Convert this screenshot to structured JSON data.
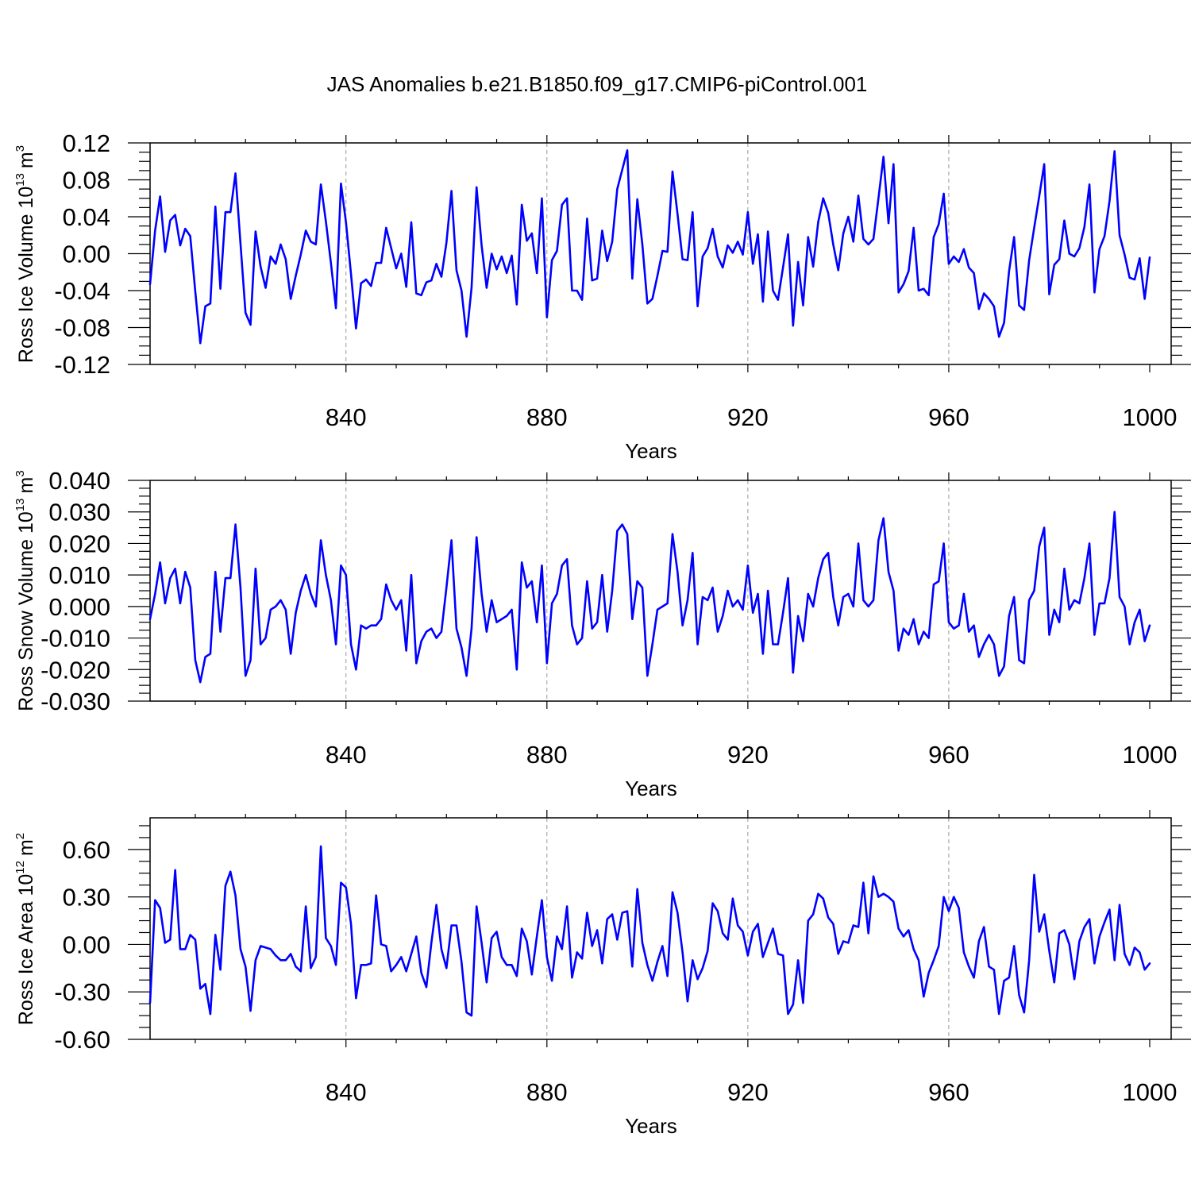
{
  "chart_data": [
    {
      "type": "line",
      "title": "JAS Anomalies b.e21.B1850.f09_g17.CMIP6-piControl.001",
      "xlabel": "Years",
      "ylabel": {
        "text": "Ross Ice Volume 10",
        "exponent": "13",
        "unit": "m",
        "unit_exponent": "3"
      },
      "xlim": [
        801,
        1000
      ],
      "xticks": [
        "840",
        "880",
        "920",
        "960",
        "1000"
      ],
      "ylim": [
        -0.12,
        0.12
      ],
      "yticks": [
        "-0.12",
        "-0.08",
        "-0.04",
        "0.00",
        "0.04",
        "0.08",
        "0.12"
      ],
      "grid": "vertical dashed at major x ticks",
      "series": [
        {
          "name": "Ross Ice Volume",
          "color": "#0000ff",
          "x_start": 801,
          "x_step": 1,
          "values": [
            -0.033,
            0.025,
            0.062,
            0.002,
            0.036,
            0.042,
            0.009,
            0.027,
            0.019,
            -0.041,
            -0.097,
            -0.057,
            -0.054,
            0.051,
            -0.038,
            0.045,
            0.045,
            0.087,
            0.011,
            -0.064,
            -0.077,
            0.024,
            -0.014,
            -0.037,
            -0.003,
            -0.011,
            0.01,
            -0.006,
            -0.049,
            -0.024,
            -0.001,
            0.025,
            0.013,
            0.01,
            0.075,
            0.035,
            -0.01,
            -0.059,
            0.076,
            0.034,
            -0.022,
            -0.081,
            -0.032,
            -0.028,
            -0.035,
            -0.01,
            -0.01,
            0.028,
            0.006,
            -0.016,
            0.0,
            -0.036,
            0.034,
            -0.043,
            -0.045,
            -0.031,
            -0.029,
            -0.011,
            -0.025,
            0.012,
            0.068,
            -0.018,
            -0.04,
            -0.09,
            -0.037,
            0.072,
            0.009,
            -0.037,
            0.0,
            -0.017,
            -0.003,
            -0.021,
            -0.002,
            -0.055,
            0.053,
            0.014,
            0.022,
            -0.021,
            0.06,
            -0.069,
            -0.007,
            0.003,
            0.053,
            0.06,
            -0.04,
            -0.04,
            -0.05,
            0.038,
            -0.029,
            -0.027,
            0.025,
            -0.008,
            0.013,
            0.07,
            0.091,
            0.112,
            -0.027,
            0.059,
            0.01,
            -0.054,
            -0.049,
            -0.024,
            0.003,
            0.002,
            0.089,
            0.043,
            -0.006,
            -0.007,
            0.045,
            -0.057,
            -0.003,
            0.006,
            0.027,
            -0.003,
            -0.015,
            0.009,
            0.001,
            0.013,
            -0.001,
            0.045,
            -0.011,
            0.021,
            -0.052,
            0.024,
            -0.04,
            -0.05,
            -0.015,
            0.021,
            -0.078,
            -0.009,
            -0.056,
            0.018,
            -0.014,
            0.034,
            0.06,
            0.044,
            0.01,
            -0.018,
            0.022,
            0.04,
            0.013,
            0.063,
            0.016,
            0.01,
            0.016,
            0.06,
            0.105,
            0.033,
            0.097,
            -0.042,
            -0.033,
            -0.019,
            0.028,
            -0.04,
            -0.038,
            -0.045,
            0.018,
            0.032,
            0.065,
            -0.011,
            -0.003,
            -0.009,
            0.005,
            -0.015,
            -0.021,
            -0.06,
            -0.043,
            -0.049,
            -0.057,
            -0.09,
            -0.075,
            -0.019,
            0.018,
            -0.056,
            -0.061,
            -0.007,
            0.028,
            0.062,
            0.097,
            -0.044,
            -0.012,
            -0.006,
            0.036,
            0.0,
            -0.003,
            0.006,
            0.029,
            0.075,
            -0.042,
            0.005,
            0.019,
            0.057,
            0.111,
            0.02,
            -0.001,
            -0.026,
            -0.028,
            -0.005,
            -0.049,
            -0.004
          ]
        }
      ]
    },
    {
      "type": "line",
      "xlabel": "Years",
      "ylabel": {
        "text": "Ross Snow Volume 10",
        "exponent": "13",
        "unit": "m",
        "unit_exponent": "3"
      },
      "xlim": [
        801,
        1000
      ],
      "xticks": [
        "840",
        "880",
        "920",
        "960",
        "1000"
      ],
      "ylim": [
        -0.03,
        0.04
      ],
      "yticks": [
        "-0.030",
        "-0.020",
        "-0.010",
        "0.000",
        "0.010",
        "0.020",
        "0.030",
        "0.040"
      ],
      "grid": "vertical dashed at major x ticks",
      "series": [
        {
          "name": "Ross Snow Volume",
          "color": "#0000ff",
          "x_start": 801,
          "x_step": 1,
          "values": [
            -0.004,
            0.004,
            0.014,
            0.001,
            0.009,
            0.012,
            0.001,
            0.011,
            0.006,
            -0.017,
            -0.024,
            -0.016,
            -0.015,
            0.011,
            -0.008,
            0.009,
            0.009,
            0.026,
            0.006,
            -0.022,
            -0.017,
            0.012,
            -0.012,
            -0.01,
            -0.001,
            0.0,
            0.002,
            -0.001,
            -0.015,
            -0.002,
            0.005,
            0.01,
            0.004,
            0.0,
            0.021,
            0.01,
            0.002,
            -0.012,
            0.013,
            0.01,
            -0.012,
            -0.02,
            -0.006,
            -0.007,
            -0.006,
            -0.006,
            -0.004,
            0.007,
            0.002,
            -0.001,
            0.002,
            -0.014,
            0.01,
            -0.018,
            -0.011,
            -0.008,
            -0.007,
            -0.01,
            -0.008,
            0.006,
            0.021,
            -0.007,
            -0.013,
            -0.022,
            -0.007,
            0.022,
            0.004,
            -0.008,
            0.002,
            -0.005,
            -0.004,
            -0.003,
            -0.001,
            -0.02,
            0.014,
            0.006,
            0.008,
            -0.005,
            0.013,
            -0.018,
            0.001,
            0.004,
            0.013,
            0.015,
            -0.006,
            -0.012,
            -0.01,
            0.008,
            -0.007,
            -0.005,
            0.01,
            -0.008,
            0.005,
            0.024,
            0.026,
            0.023,
            -0.004,
            0.008,
            0.006,
            -0.022,
            -0.012,
            -0.001,
            0.0,
            0.001,
            0.023,
            0.011,
            -0.006,
            0.002,
            0.017,
            -0.012,
            0.003,
            0.002,
            0.006,
            -0.008,
            -0.003,
            0.005,
            0.0,
            0.002,
            -0.001,
            0.013,
            -0.002,
            0.004,
            -0.015,
            0.005,
            -0.012,
            -0.012,
            -0.002,
            0.009,
            -0.021,
            -0.003,
            -0.011,
            0.004,
            0.0,
            0.009,
            0.015,
            0.017,
            0.003,
            -0.006,
            0.003,
            0.004,
            0.0,
            0.02,
            0.002,
            0.0,
            0.002,
            0.021,
            0.028,
            0.011,
            0.005,
            -0.014,
            -0.007,
            -0.009,
            -0.004,
            -0.012,
            -0.008,
            -0.01,
            0.007,
            0.008,
            0.02,
            -0.005,
            -0.007,
            -0.006,
            0.004,
            -0.008,
            -0.006,
            -0.016,
            -0.012,
            -0.009,
            -0.012,
            -0.022,
            -0.019,
            -0.003,
            0.003,
            -0.017,
            -0.018,
            0.002,
            0.005,
            0.019,
            0.025,
            -0.009,
            -0.001,
            -0.005,
            0.012,
            -0.001,
            0.002,
            0.001,
            0.009,
            0.02,
            -0.009,
            0.001,
            0.001,
            0.009,
            0.03,
            0.003,
            0.0,
            -0.012,
            -0.005,
            -0.001,
            -0.011,
            -0.006
          ]
        }
      ]
    },
    {
      "type": "line",
      "xlabel": "Years",
      "ylabel": {
        "text": "Ross Ice Area 10",
        "exponent": "12",
        "unit": "m",
        "unit_exponent": "2"
      },
      "xlim": [
        801,
        1000
      ],
      "xticks": [
        "840",
        "880",
        "920",
        "960",
        "1000"
      ],
      "ylim": [
        -0.6,
        0.8
      ],
      "yticks": [
        "-0.60",
        "-0.30",
        "0.00",
        "0.30",
        "0.60"
      ],
      "grid": "vertical dashed at major x ticks",
      "series": [
        {
          "name": "Ross Ice Area",
          "color": "#0000ff",
          "x_start": 801,
          "x_step": 1,
          "values": [
            -0.37,
            0.28,
            0.23,
            0.01,
            0.03,
            0.47,
            -0.03,
            -0.03,
            0.06,
            0.03,
            -0.28,
            -0.25,
            -0.44,
            0.06,
            -0.16,
            0.37,
            0.46,
            0.31,
            -0.03,
            -0.14,
            -0.42,
            -0.1,
            -0.01,
            -0.02,
            -0.03,
            -0.07,
            -0.1,
            -0.1,
            -0.06,
            -0.14,
            -0.17,
            0.24,
            -0.15,
            -0.08,
            0.62,
            0.04,
            -0.01,
            -0.13,
            0.39,
            0.36,
            0.13,
            -0.34,
            -0.13,
            -0.13,
            -0.12,
            0.31,
            0.0,
            -0.01,
            -0.17,
            -0.13,
            -0.08,
            -0.17,
            -0.06,
            0.05,
            -0.18,
            -0.27,
            0.01,
            0.25,
            -0.03,
            -0.15,
            0.12,
            0.12,
            -0.11,
            -0.43,
            -0.45,
            0.24,
            0.01,
            -0.24,
            0.04,
            0.08,
            -0.08,
            -0.13,
            -0.13,
            -0.2,
            0.1,
            0.02,
            -0.19,
            0.05,
            0.28,
            -0.08,
            -0.23,
            0.05,
            -0.03,
            0.24,
            -0.21,
            -0.05,
            -0.09,
            0.2,
            -0.01,
            0.09,
            -0.12,
            0.16,
            0.19,
            0.03,
            0.2,
            0.21,
            -0.14,
            0.35,
            0.01,
            -0.13,
            -0.23,
            -0.11,
            -0.01,
            -0.2,
            0.33,
            0.2,
            -0.05,
            -0.36,
            -0.1,
            -0.22,
            -0.15,
            -0.04,
            0.26,
            0.21,
            0.07,
            0.03,
            0.29,
            0.12,
            0.08,
            -0.07,
            0.08,
            0.13,
            -0.08,
            0.01,
            0.1,
            -0.06,
            -0.07,
            -0.44,
            -0.38,
            -0.1,
            -0.37,
            0.15,
            0.19,
            0.32,
            0.29,
            0.17,
            0.13,
            -0.06,
            0.02,
            0.01,
            0.12,
            0.11,
            0.39,
            0.07,
            0.43,
            0.3,
            0.32,
            0.3,
            0.27,
            0.1,
            0.05,
            0.09,
            -0.03,
            -0.1,
            -0.33,
            -0.18,
            -0.1,
            -0.01,
            0.3,
            0.21,
            0.3,
            0.23,
            -0.05,
            -0.14,
            -0.21,
            0.02,
            0.11,
            -0.14,
            -0.16,
            -0.44,
            -0.23,
            -0.21,
            -0.01,
            -0.32,
            -0.43,
            -0.1,
            0.44,
            0.08,
            0.19,
            -0.04,
            -0.24,
            0.07,
            0.09,
            0.0,
            -0.22,
            0.02,
            0.11,
            0.16,
            -0.12,
            0.05,
            0.14,
            0.22,
            -0.1,
            0.25,
            -0.06,
            -0.13,
            -0.02,
            -0.05,
            -0.16,
            -0.12
          ]
        }
      ]
    }
  ]
}
